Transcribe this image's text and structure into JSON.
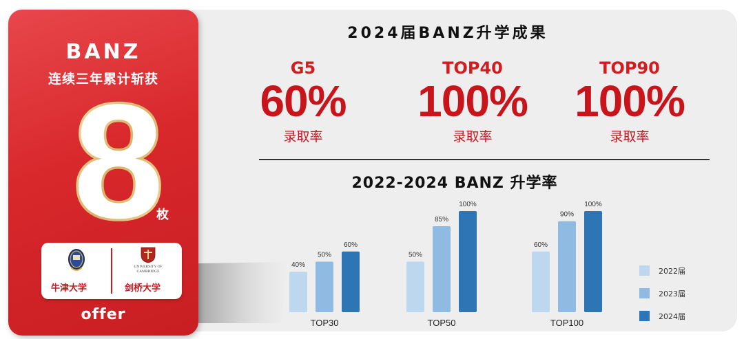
{
  "left_card": {
    "brand": "BANZ",
    "subtitle": "连续三年累计斩获",
    "count": "8",
    "unit": "枚",
    "universities": [
      {
        "name": "牛津大学"
      },
      {
        "name": "剑桥大学",
        "crest_text": "UNIVERSITY OF CAMBRIDGE"
      }
    ],
    "footer": "offer"
  },
  "main_title": "2024届BANZ升学成果",
  "stats": [
    {
      "label": "G5",
      "value": "60%",
      "caption": "录取率"
    },
    {
      "label": "TOP40",
      "value": "100%",
      "caption": "录取率"
    },
    {
      "label": "TOP90",
      "value": "100%",
      "caption": "录取率"
    }
  ],
  "colors": {
    "red": "#c8151b",
    "card_red": "#d8282c",
    "series_2022": "#bcd7ee",
    "series_2023": "#8fbbe2",
    "series_2024": "#2e75b6"
  },
  "chart_data": {
    "type": "bar",
    "title": "2022-2024  BANZ  升学率",
    "categories": [
      "TOP30",
      "TOP50",
      "TOP100"
    ],
    "series": [
      {
        "name": "2022届",
        "values": [
          40,
          50,
          60
        ],
        "labels": [
          "40%",
          "50%",
          "60%"
        ]
      },
      {
        "name": "2023届",
        "values": [
          50,
          85,
          90
        ],
        "labels": [
          "50%",
          "85%",
          "90%"
        ]
      },
      {
        "name": "2024届",
        "values": [
          60,
          100,
          100
        ],
        "labels": [
          "60%",
          "100%",
          "100%"
        ]
      }
    ],
    "ylim": [
      0,
      100
    ],
    "grid": false,
    "legend": "right"
  }
}
